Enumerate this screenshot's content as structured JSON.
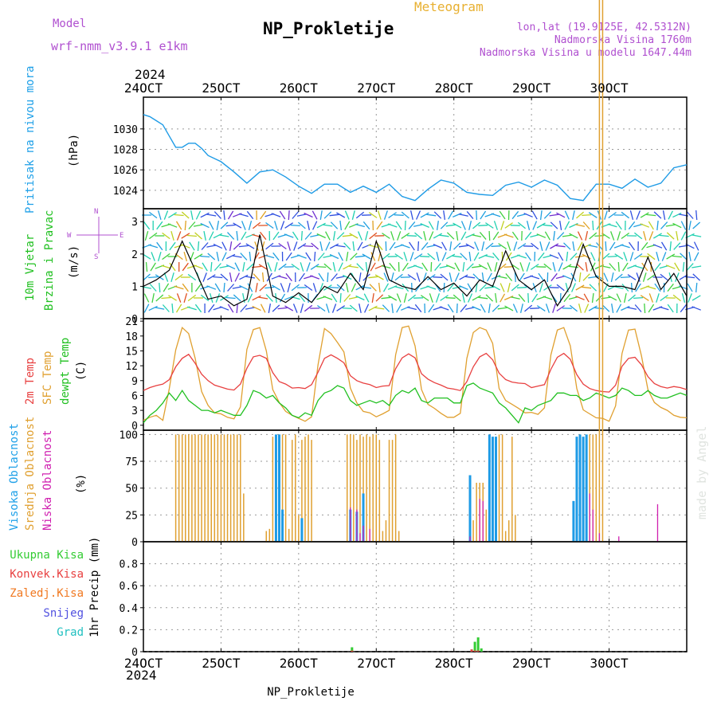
{
  "header": {
    "model_label": "Model",
    "model_value": "wrf-nmm_v3.9.1 e1km",
    "title": "NP_Prokletije",
    "meteogram_label": "Meteogram",
    "lonlat": "lon,lat (19.9125E, 42.5312N)",
    "altitude": "Nadmorska Visina 1760m",
    "model_altitude": "Nadmorska Visina u modelu 1647.44m",
    "year_top": "2024",
    "year_bottom": "2024",
    "footer_title": "NP_Prokletije",
    "watermark": "made by Angel"
  },
  "colors": {
    "pressure": "#1e9be6",
    "high_cloud": "#1e9be6",
    "mid_cloud": "#e0a030",
    "low_cloud": "#d020b0",
    "t2m": "#e84040",
    "sfc": "#e0a030",
    "dewpt": "#20c020",
    "total_precip": "#33cc33",
    "convective_precip": "#e84040",
    "grid_precip": "#f07820",
    "snow": "#5050e0",
    "graupel": "#20c0c0"
  },
  "x_axis": {
    "ticks": [
      "24OCT",
      "25OCT",
      "26OCT",
      "27OCT",
      "28OCT",
      "29OCT",
      "30OCT"
    ]
  },
  "panel_labels": {
    "pressure": {
      "title": "Pritisak na nivou mora",
      "unit": "(hPa)"
    },
    "wind": {
      "title_line1": "10m Vjetar",
      "title_line2": "Brzina i Pravac",
      "unit": "(m/s)",
      "compass": [
        "N",
        "W",
        "E",
        "S"
      ]
    },
    "temperature": {
      "t2m": "2m Temp",
      "sfc": "SFC Temp",
      "dewpt": "dewpt Temp",
      "unit": "(C)"
    },
    "cloud": {
      "high": "Visoka Oblacnost",
      "mid": "Srednja Oblacnost",
      "low": "Niska Oblacnost",
      "unit": "(%)"
    },
    "precip": {
      "total": "Ukupna Kisa",
      "convective": "Konvek.Kisa",
      "grid": "Zaledj.Kisa",
      "snow": "Snijeg",
      "graupel": "Grad",
      "unit": "1hr Precip (mm)"
    }
  },
  "chart_data": [
    {
      "type": "line",
      "title": "Pritisak na nivou mora",
      "ylabel": "(hPa)",
      "ylim": [
        1022.2,
        1033.1
      ],
      "yticks": [
        "1024",
        "1026",
        "1028",
        "1030"
      ],
      "x_hours": [
        0,
        2,
        4,
        6,
        8,
        10,
        12,
        14,
        16,
        18,
        20,
        24,
        28,
        32,
        36,
        40,
        44,
        48,
        52,
        56,
        60,
        64,
        66,
        68,
        72,
        76,
        80,
        84,
        88,
        92,
        96,
        100,
        104,
        108,
        112,
        116,
        120,
        124,
        128,
        132,
        136,
        140,
        144,
        148,
        152,
        156,
        160,
        164,
        168
      ],
      "series": [
        {
          "values": [
            1031.4,
            1031.2,
            1030.8,
            1030.4,
            1029.3,
            1028.2,
            1028.2,
            1028.6,
            1028.6,
            1028.1,
            1027.4,
            1026.8,
            1025.8,
            1024.7,
            1025.8,
            1026.0,
            1025.3,
            1024.4,
            1023.7,
            1024.6,
            1024.6,
            1023.8,
            1024.1,
            1024.4,
            1023.8,
            1024.6,
            1023.4,
            1023.0,
            1024.1,
            1025.0,
            1024.7,
            1023.8,
            1023.6,
            1023.5,
            1024.5,
            1024.8,
            1024.3,
            1025.0,
            1024.5,
            1023.2,
            1023.0,
            1024.6,
            1024.6,
            1024.2,
            1025.1,
            1024.3,
            1024.7,
            1026.2,
            1026.5
          ]
        }
      ]
    },
    {
      "type": "line",
      "title": "10m Vjetar Brzina i Pravac",
      "ylabel": "(m/s)",
      "ylim": [
        0,
        3.4
      ],
      "yticks": [
        "0",
        "1",
        "2",
        "3"
      ],
      "x_hours": [
        0,
        4,
        8,
        12,
        16,
        20,
        24,
        28,
        32,
        36,
        40,
        44,
        48,
        52,
        56,
        60,
        64,
        68,
        72,
        76,
        80,
        84,
        88,
        92,
        96,
        100,
        104,
        108,
        112,
        116,
        120,
        124,
        128,
        132,
        136,
        140,
        144,
        148,
        152,
        156,
        160,
        164,
        168
      ],
      "series": [
        {
          "values": [
            1.0,
            1.2,
            1.5,
            2.4,
            1.5,
            0.6,
            0.7,
            0.4,
            0.6,
            2.6,
            0.7,
            0.5,
            0.8,
            0.5,
            1.0,
            0.8,
            1.4,
            0.9,
            2.4,
            1.2,
            1.0,
            0.9,
            1.3,
            0.9,
            1.1,
            0.7,
            1.2,
            1.0,
            2.1,
            1.2,
            0.9,
            1.2,
            0.4,
            1.0,
            2.3,
            1.3,
            1.0,
            1.0,
            0.9,
            1.9,
            0.9,
            1.4,
            0.7
          ]
        }
      ]
    },
    {
      "type": "line",
      "title": "",
      "ylabel": "(C)",
      "ylim": [
        -1,
        21.5
      ],
      "yticks": [
        "0",
        "3",
        "6",
        "9",
        "12",
        "15",
        "18",
        "21"
      ],
      "x_hours": [
        0,
        2,
        4,
        6,
        8,
        10,
        12,
        14,
        16,
        18,
        20,
        22,
        24,
        26,
        28,
        30,
        32,
        34,
        36,
        38,
        40,
        42,
        44,
        46,
        48,
        50,
        52,
        54,
        56,
        58,
        60,
        62,
        64,
        66,
        68,
        70,
        72,
        74,
        76,
        78,
        80,
        82,
        84,
        86,
        88,
        90,
        92,
        94,
        96,
        98,
        100,
        102,
        104,
        106,
        108,
        110,
        112,
        114,
        116,
        118,
        120,
        122,
        124,
        126,
        128,
        130,
        132,
        134,
        136,
        138,
        140,
        142,
        144,
        146,
        148,
        150,
        152,
        154,
        156,
        158,
        160,
        162,
        164,
        166,
        168
      ],
      "series": [
        {
          "name": "2m Temp",
          "values": [
            7.0,
            7.6,
            8.0,
            8.3,
            9.2,
            11.8,
            13.5,
            14.3,
            12.5,
            10.3,
            9.0,
            8.1,
            7.7,
            7.3,
            7.1,
            8.3,
            11.5,
            13.8,
            14.1,
            13.5,
            10.6,
            8.8,
            8.3,
            7.5,
            7.6,
            7.4,
            8.2,
            10.7,
            13.5,
            14.2,
            13.5,
            12.6,
            10.0,
            9.0,
            8.5,
            8.2,
            7.6,
            7.9,
            8.0,
            11.4,
            13.6,
            14.4,
            13.6,
            10.4,
            9.3,
            8.6,
            8.1,
            7.5,
            7.3,
            7.0,
            8.8,
            11.8,
            13.8,
            14.5,
            13.2,
            10.5,
            9.2,
            8.7,
            8.5,
            8.4,
            7.6,
            7.9,
            8.2,
            11.3,
            13.7,
            14.5,
            13.3,
            10.2,
            8.3,
            7.4,
            7.0,
            6.8,
            6.7,
            8.1,
            11.9,
            13.5,
            13.7,
            12.2,
            9.8,
            8.4,
            7.8,
            7.5,
            7.8,
            7.6,
            7.2
          ]
        },
        {
          "name": "SFC Temp",
          "values": [
            1.0,
            1.6,
            2.0,
            1.0,
            7.4,
            15.2,
            19.7,
            18.5,
            13.5,
            6.8,
            4.0,
            2.5,
            2.3,
            1.6,
            1.3,
            3.7,
            15.3,
            19.3,
            19.7,
            15.0,
            7.2,
            4.6,
            2.8,
            2.0,
            1.4,
            0.8,
            1.7,
            12.2,
            19.5,
            18.5,
            16.7,
            14.8,
            7.5,
            4.5,
            2.8,
            2.5,
            1.7,
            2.3,
            3.0,
            14.2,
            19.7,
            20.0,
            16.0,
            7.2,
            4.2,
            3.4,
            2.4,
            1.6,
            1.6,
            2.4,
            13.5,
            18.7,
            19.7,
            19.2,
            16.5,
            7.4,
            5.0,
            4.2,
            3.4,
            2.5,
            2.6,
            2.2,
            3.5,
            14.2,
            19.2,
            19.7,
            16.0,
            7.4,
            3.1,
            2.3,
            1.5,
            1.4,
            0.8,
            3.9,
            14.5,
            19.2,
            19.4,
            14.0,
            7.2,
            4.6,
            3.6,
            3.0,
            2.0,
            1.6,
            1.5
          ]
        },
        {
          "name": "dewpt Temp",
          "values": [
            0.5,
            2.0,
            3.0,
            4.5,
            6.5,
            5.0,
            7.0,
            5.0,
            4.0,
            3.0,
            3.0,
            2.5,
            3.0,
            2.5,
            2.0,
            2.0,
            4.0,
            7.0,
            6.5,
            5.5,
            6.0,
            4.5,
            3.5,
            2.0,
            1.5,
            2.5,
            2.0,
            5.0,
            6.5,
            7.0,
            8.0,
            7.5,
            5.0,
            4.0,
            4.5,
            5.0,
            4.5,
            5.0,
            4.0,
            6.0,
            7.0,
            6.5,
            7.5,
            5.0,
            4.5,
            5.5,
            5.5,
            5.5,
            4.5,
            4.5,
            8.0,
            8.5,
            7.5,
            7.0,
            6.5,
            4.5,
            3.5,
            2.0,
            0.5,
            3.5,
            3.0,
            4.0,
            4.5,
            5.0,
            6.5,
            6.5,
            6.0,
            6.0,
            5.0,
            5.5,
            6.5,
            6.0,
            5.5,
            6.0,
            7.5,
            7.0,
            6.0,
            6.0,
            7.0,
            6.0,
            5.5,
            5.5,
            6.0,
            6.5,
            6.0
          ]
        }
      ]
    },
    {
      "type": "bar",
      "title": "",
      "ylabel": "(%)",
      "ylim": [
        0,
        104
      ],
      "yticks": [
        "0",
        "25",
        "50",
        "75",
        "100"
      ],
      "bar_hours_mid": [
        10,
        11,
        12,
        13,
        14,
        15,
        16,
        17,
        18,
        19,
        20,
        21,
        22,
        23,
        24,
        25,
        26,
        27,
        28,
        29,
        30,
        31,
        38,
        39,
        40,
        41,
        42,
        43,
        44,
        45,
        46,
        47,
        48,
        49,
        50,
        51,
        52,
        63,
        64,
        65,
        66,
        67,
        68,
        69,
        70,
        71,
        72,
        73,
        74,
        75,
        76,
        77,
        78,
        79,
        102,
        103,
        104,
        105,
        106,
        107,
        108,
        109,
        110,
        111,
        112,
        113,
        114,
        115,
        135,
        136,
        137,
        138,
        139,
        140,
        141,
        142
      ],
      "mid_values": [
        100,
        100,
        100,
        100,
        100,
        100,
        100,
        100,
        100,
        100,
        100,
        100,
        100,
        100,
        100,
        100,
        100,
        100,
        100,
        100,
        100,
        45,
        10,
        12,
        98,
        98,
        100,
        100,
        100,
        12,
        95,
        100,
        25,
        95,
        98,
        100,
        95,
        100,
        100,
        100,
        95,
        100,
        98,
        100,
        98,
        100,
        100,
        95,
        10,
        20,
        95,
        95,
        100,
        10,
        20,
        55,
        55,
        55,
        30,
        100,
        95,
        95,
        100,
        100,
        10,
        20,
        98,
        25,
        100,
        95,
        95,
        100,
        100,
        100
      ],
      "high_points": [
        [
          41,
          100
        ],
        [
          42,
          100
        ],
        [
          43,
          30
        ],
        [
          49,
          22
        ],
        [
          64,
          30
        ],
        [
          66,
          28
        ],
        [
          68,
          45
        ],
        [
          101,
          62
        ],
        [
          101,
          20
        ],
        [
          107,
          100
        ],
        [
          108,
          98
        ],
        [
          109,
          98
        ],
        [
          133,
          38
        ],
        [
          134,
          98
        ],
        [
          135,
          100
        ],
        [
          136,
          98
        ],
        [
          137,
          100
        ]
      ],
      "low_points": [
        [
          64,
          32
        ],
        [
          66,
          30
        ],
        [
          67,
          8
        ],
        [
          68,
          15
        ],
        [
          70,
          12
        ],
        [
          101,
          5
        ],
        [
          104,
          40
        ],
        [
          105,
          38
        ],
        [
          138,
          45
        ],
        [
          139,
          30
        ],
        [
          141,
          8
        ],
        [
          147,
          5
        ],
        [
          159,
          35
        ]
      ]
    },
    {
      "type": "bar",
      "title": "",
      "ylabel": "1hr Precip (mm)",
      "ylim": [
        0,
        1.0
      ],
      "yticks": [
        "0",
        "0.2",
        "0.4",
        "0.6",
        "0.8"
      ],
      "bars": [
        {
          "hour": 64.5,
          "total": 0.04,
          "convective": 0.01
        },
        {
          "hour": 101.5,
          "total": 0.02,
          "convective": 0.02
        },
        {
          "hour": 102.5,
          "total": 0.09,
          "convective": 0.01
        },
        {
          "hour": 103.5,
          "total": 0.13,
          "convective": 0.01
        },
        {
          "hour": 104.5,
          "total": 0.03,
          "convective": 0.0
        }
      ]
    }
  ]
}
